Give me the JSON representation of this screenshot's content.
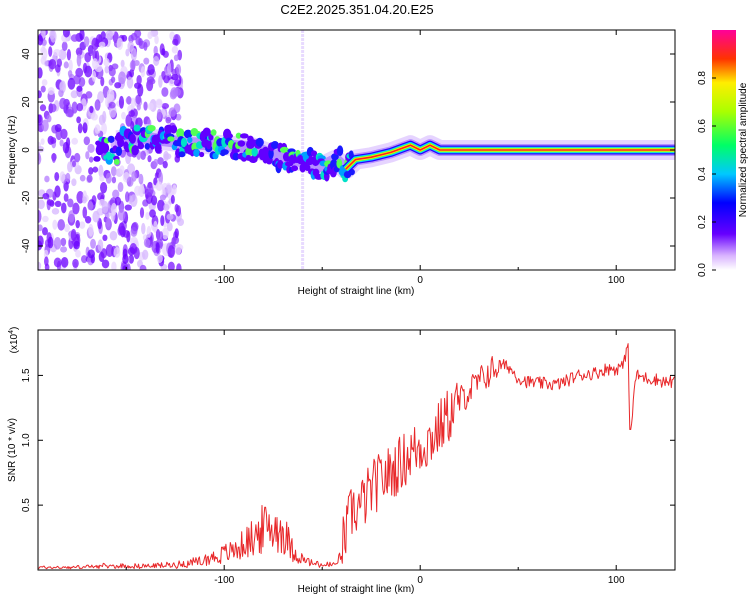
{
  "title": "C2E2.2025.351.04.20.E25",
  "chart_data": [
    {
      "type": "heatmap",
      "name": "spectrogram",
      "xlabel": "Height of straight line (km)",
      "ylabel": "Frequency (Hz)",
      "xlim": [
        -195,
        130
      ],
      "ylim": [
        -50,
        50
      ],
      "xticks": [
        -100,
        0,
        100
      ],
      "xtick_labels": [
        "-100",
        "0",
        "100"
      ],
      "yticks": [
        -40,
        -20,
        0,
        20,
        40
      ],
      "ytick_labels": [
        "-40",
        "-20",
        "0",
        "20",
        "40"
      ],
      "colorbar": {
        "label": "Normalized spectral amplitude",
        "range": [
          0,
          1
        ],
        "ticks": [
          0.0,
          0.2,
          0.4,
          0.6,
          0.8
        ],
        "tick_labels": [
          "0.0",
          "0.2",
          "0.4",
          "0.6",
          "0.8"
        ],
        "colors": [
          "#ffffff",
          "#6600ff",
          "#0000ff",
          "#00ffff",
          "#00ff00",
          "#ffff00",
          "#ff0000",
          "#ff00aa"
        ]
      },
      "signal_trace": [
        [
          -155,
          4
        ],
        [
          -140,
          5
        ],
        [
          -120,
          3
        ],
        [
          -100,
          2
        ],
        [
          -85,
          1
        ],
        [
          -75,
          -2
        ],
        [
          -65,
          -4
        ],
        [
          -58,
          -5
        ],
        [
          -52,
          -7
        ],
        [
          -48,
          -6
        ],
        [
          -43,
          -4
        ],
        [
          -38,
          -8
        ],
        [
          -33,
          -4
        ],
        [
          -25,
          -3
        ],
        [
          -15,
          -1
        ],
        [
          -5,
          2
        ],
        [
          0,
          0
        ],
        [
          5,
          2
        ],
        [
          10,
          0
        ],
        [
          30,
          0
        ],
        [
          60,
          0
        ],
        [
          90,
          0
        ],
        [
          130,
          0
        ]
      ],
      "noise_band": [
        -195,
        -130
      ],
      "interference_line_x": -60
    },
    {
      "type": "line",
      "name": "snr",
      "xlabel": "Height of straight line (km)",
      "ylabel": "SNR (10 * v/v)",
      "y_multiplier": "(x10",
      "y_multiplier_exp": "4",
      "y_multiplier_close": ")",
      "xlim": [
        -195,
        130
      ],
      "ylim": [
        0,
        1.85
      ],
      "xticks": [
        -100,
        0,
        100
      ],
      "xtick_labels": [
        "-100",
        "0",
        "100"
      ],
      "yticks": [
        0.5,
        1.0,
        1.5
      ],
      "ytick_labels": [
        "0.5",
        "1.0",
        "1.5"
      ],
      "color": "#e8282a",
      "series": [
        {
          "name": "SNR",
          "x": [
            -195,
            -180,
            -160,
            -140,
            -125,
            -115,
            -105,
            -95,
            -85,
            -80,
            -75,
            -70,
            -65,
            -60,
            -55,
            -50,
            -45,
            -42,
            -38,
            -35,
            -30,
            -25,
            -20,
            -15,
            -10,
            -5,
            0,
            5,
            10,
            15,
            20,
            25,
            30,
            35,
            40,
            45,
            50,
            55,
            60,
            70,
            75,
            80,
            90,
            95,
            100,
            104,
            106,
            107,
            110,
            115,
            120,
            125,
            130
          ],
          "y": [
            0.02,
            0.02,
            0.03,
            0.03,
            0.04,
            0.06,
            0.1,
            0.15,
            0.25,
            0.32,
            0.33,
            0.3,
            0.15,
            0.08,
            0.05,
            0.04,
            0.04,
            0.05,
            0.28,
            0.45,
            0.5,
            0.62,
            0.7,
            0.75,
            0.82,
            0.9,
            0.95,
            1.0,
            1.1,
            1.2,
            1.3,
            1.38,
            1.45,
            1.52,
            1.58,
            1.57,
            1.48,
            1.45,
            1.44,
            1.43,
            1.46,
            1.5,
            1.52,
            1.55,
            1.55,
            1.58,
            1.8,
            1.0,
            1.5,
            1.48,
            1.47,
            1.45,
            1.45
          ]
        }
      ]
    }
  ]
}
